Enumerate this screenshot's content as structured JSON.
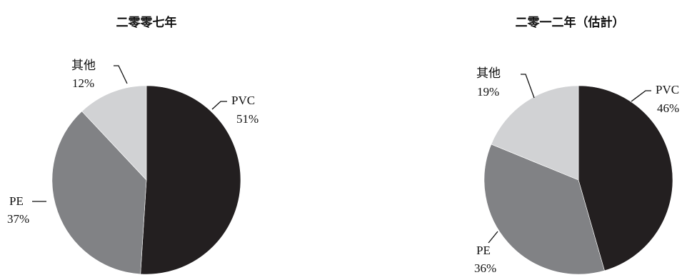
{
  "chart_data": [
    {
      "type": "pie",
      "title": "二零零七年",
      "slices": [
        {
          "label": "PVC",
          "value": 51,
          "value_label": "51%",
          "color": "#231f20"
        },
        {
          "label": "PE",
          "value": 37,
          "value_label": "37%",
          "color": "#818285"
        },
        {
          "label": "其他",
          "value": 12,
          "value_label": "12%",
          "color": "#d1d2d4"
        }
      ]
    },
    {
      "type": "pie",
      "title": "二零一二年（估計）",
      "slices": [
        {
          "label": "PVC",
          "value": 46,
          "value_label": "46%",
          "color": "#231f20"
        },
        {
          "label": "PE",
          "value": 36,
          "value_label": "36%",
          "color": "#818285"
        },
        {
          "label": "其他",
          "value": 19,
          "value_label": "19%",
          "color": "#d1d2d4"
        }
      ]
    }
  ]
}
